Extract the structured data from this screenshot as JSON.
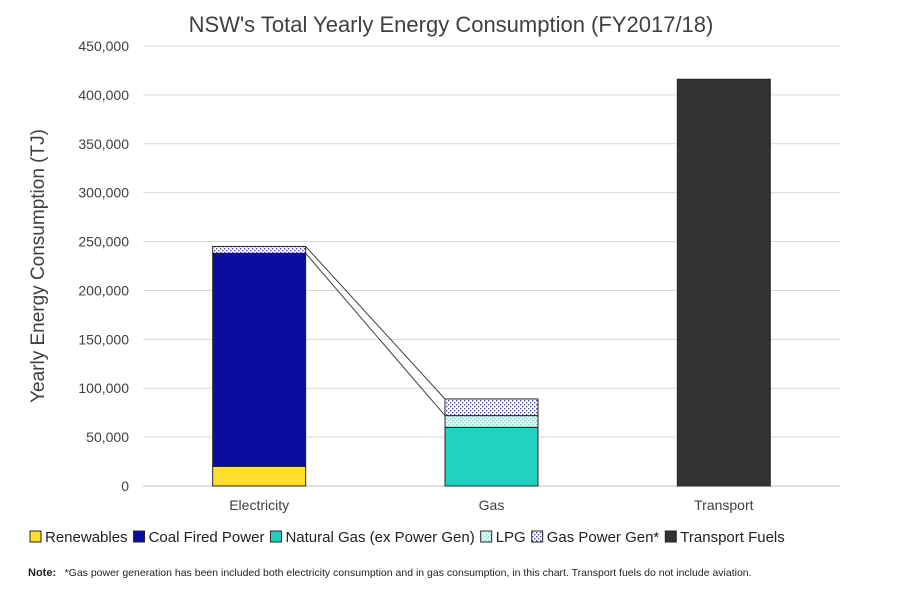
{
  "chart_data": {
    "type": "bar",
    "stacked": true,
    "title": "NSW's Total Yearly Energy Consumption (FY2017/18)",
    "ylabel": "Yearly Energy Consumption (TJ)",
    "xlabel": "",
    "ylim": [
      0,
      450000
    ],
    "yticks": [
      "0",
      "50,000",
      "100,000",
      "150,000",
      "200,000",
      "250,000",
      "300,000",
      "350,000",
      "400,000",
      "450,000"
    ],
    "grid": true,
    "legend_position": "bottom",
    "categories": [
      "Electricity",
      "Gas",
      "Transport"
    ],
    "series": [
      {
        "name": "Renewables",
        "color": "#FFDE2E",
        "pattern": "solid",
        "values": [
          20000,
          0,
          0
        ]
      },
      {
        "name": "Coal Fired Power",
        "color": "#0A0E9E",
        "pattern": "solid",
        "values": [
          218000,
          0,
          0
        ]
      },
      {
        "name": "Natural Gas (ex Power Gen)",
        "color": "#23D1C1",
        "pattern": "solid",
        "values": [
          0,
          60000,
          0
        ]
      },
      {
        "name": "LPG",
        "color": "#BFEFEA",
        "pattern": "dots-light",
        "values": [
          0,
          12000,
          0
        ]
      },
      {
        "name": "Gas Power Gen*",
        "color": "#4A4FB8",
        "pattern": "dots",
        "values": [
          7000,
          17000,
          0
        ]
      },
      {
        "name": "Transport Fuels",
        "color": "#333333",
        "pattern": "solid",
        "values": [
          0,
          0,
          416000
        ]
      }
    ]
  },
  "note": {
    "label": "Note:",
    "text": "*Gas power generation has been included both electricity consumption and in gas consumption, in this chart. Transport fuels do not include aviation."
  }
}
